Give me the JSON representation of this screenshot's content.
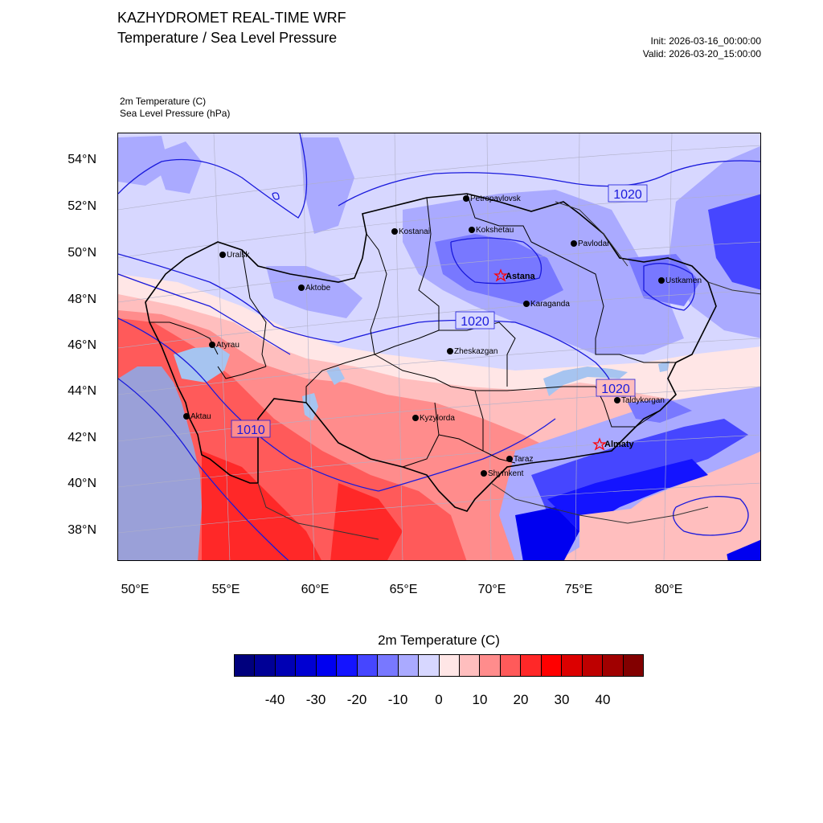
{
  "header": {
    "title": "KAZHYDROMET REAL-TIME WRF",
    "subtitle": "Temperature / Sea Level Pressure",
    "init": "Init: 2026-03-16_00:00:00",
    "valid": "Valid: 2026-03-20_15:00:00"
  },
  "fields": {
    "field1": "2m Temperature   (C)",
    "field2": "Sea Level Pressure   (hPa)"
  },
  "axes": {
    "lat_labels": [
      "54°N",
      "52°N",
      "50°N",
      "48°N",
      "46°N",
      "44°N",
      "42°N",
      "40°N",
      "38°N"
    ],
    "lon_labels": [
      "50°E",
      "55°E",
      "60°E",
      "65°E",
      "70°E",
      "75°E",
      "80°E"
    ]
  },
  "cities": [
    {
      "name": "Petropavlovsk",
      "bold": false,
      "marker": "dot"
    },
    {
      "name": "Kostanai",
      "bold": false,
      "marker": "dot"
    },
    {
      "name": "Kokshetau",
      "bold": false,
      "marker": "dot"
    },
    {
      "name": "Pavlodar",
      "bold": false,
      "marker": "dot"
    },
    {
      "name": "Uralsk",
      "bold": false,
      "marker": "dot"
    },
    {
      "name": "Aktobe",
      "bold": false,
      "marker": "dot"
    },
    {
      "name": "Astana",
      "bold": true,
      "marker": "star"
    },
    {
      "name": "Ustkamen",
      "bold": false,
      "marker": "dot"
    },
    {
      "name": "Karaganda",
      "bold": false,
      "marker": "dot"
    },
    {
      "name": "Atyrau",
      "bold": false,
      "marker": "dot"
    },
    {
      "name": "Zheskazgan",
      "bold": false,
      "marker": "dot"
    },
    {
      "name": "Taldykorgan",
      "bold": false,
      "marker": "dot"
    },
    {
      "name": "Aktau",
      "bold": false,
      "marker": "dot"
    },
    {
      "name": "Kyzylorda",
      "bold": false,
      "marker": "dot"
    },
    {
      "name": "Almaty",
      "bold": true,
      "marker": "star"
    },
    {
      "name": "Taraz",
      "bold": false,
      "marker": "dot"
    },
    {
      "name": "Shymkent",
      "bold": false,
      "marker": "dot"
    }
  ],
  "isobar_labels": [
    "1020",
    "1020",
    "1020",
    "1010"
  ],
  "colorbar": {
    "title": "2m Temperature  (C)",
    "colors": [
      "#00007d",
      "#000096",
      "#0000b4",
      "#0000d2",
      "#0000f0",
      "#1414ff",
      "#4646ff",
      "#7878ff",
      "#aaaaff",
      "#d7d7ff",
      "#ffe6e6",
      "#ffbebe",
      "#ff8c8c",
      "#ff5a5a",
      "#ff2828",
      "#ff0000",
      "#dc0000",
      "#be0000",
      "#a00000",
      "#820000"
    ],
    "labels": [
      "-40",
      "-30",
      "-20",
      "-10",
      "0",
      "10",
      "20",
      "30",
      "40"
    ]
  },
  "map_colors": {
    "land_cold_light": "#d7d7ff",
    "land_cold_mid": "#aaaaff",
    "land_cold": "#7878ff",
    "land_cold_deep": "#4646ff",
    "land_warm_light": "#ffe6e6",
    "land_warm": "#ffbebe",
    "land_warm_mid": "#ff8c8c",
    "land_warm_strong": "#ff5a5a",
    "land_hot": "#ff2828",
    "caspian": "#9aa0d8",
    "lake": "#a6c4f0",
    "isobar": "#1a1adc",
    "border": "#000000"
  }
}
